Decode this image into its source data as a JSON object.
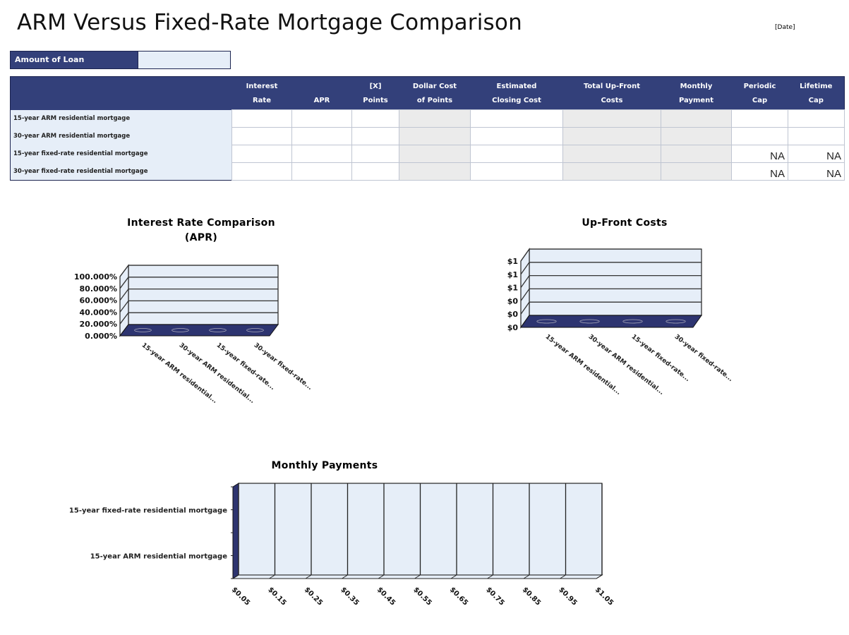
{
  "title": "ARM Versus Fixed-Rate Mortgage Comparison",
  "date": "[Date]",
  "loan": {
    "label": "Amount of Loan",
    "value": ""
  },
  "table": {
    "headers": [
      "",
      "Interest\nRate",
      "APR",
      "[X]\nPoints",
      "Dollar Cost\nof Points",
      "Estimated\nClosing Cost",
      "Total Up-Front\nCosts",
      "Monthly\nPayment",
      "Periodic\nCap",
      "Lifetime\nCap"
    ],
    "rows": [
      {
        "label": "15-year ARM residential mortgage",
        "periodic_cap": "",
        "lifetime_cap": ""
      },
      {
        "label": "30-year ARM residential mortgage",
        "periodic_cap": "",
        "lifetime_cap": ""
      },
      {
        "label": "15-year fixed-rate residential mortgage",
        "periodic_cap": "NA",
        "lifetime_cap": "NA"
      },
      {
        "label": "30-year fixed-rate residential mortgage",
        "periodic_cap": "NA",
        "lifetime_cap": "NA"
      }
    ]
  },
  "colors": {
    "header": "#33407a",
    "input": "#e6eef8",
    "calc": "#ebebeb",
    "floor": "#2d3470"
  },
  "chart_data": [
    {
      "type": "bar",
      "title": "Interest Rate Comparison\n(APR)",
      "categories": [
        "15-year ARM residential...",
        "30-year ARM residential...",
        "15-year fixed-rate...",
        "30-year fixed-rate..."
      ],
      "values": [
        0,
        0,
        0,
        0
      ],
      "ylim": [
        0,
        1
      ],
      "yticks": [
        "0.000%",
        "20.000%",
        "40.000%",
        "60.000%",
        "80.000%",
        "100.000%"
      ],
      "grid": true
    },
    {
      "type": "bar",
      "title": "Up-Front Costs",
      "categories": [
        "15-year ARM residential...",
        "30-year ARM residential...",
        "15-year fixed-rate...",
        "30-year fixed-rate..."
      ],
      "values": [
        0,
        0,
        0,
        0
      ],
      "ylim": [
        0,
        1
      ],
      "yticks": [
        "$0",
        "$0",
        "$0",
        "$1",
        "$1",
        "$1"
      ],
      "grid": true
    },
    {
      "type": "bar",
      "title": "Monthly Payments",
      "orientation": "horizontal",
      "categories": [
        "15-year ARM residential mortgage",
        "15-year fixed-rate residential mortgage"
      ],
      "values": [
        0,
        0
      ],
      "xlim": [
        0,
        1
      ],
      "xticks": [
        "$0.05",
        "$0.15",
        "$0.25",
        "$0.35",
        "$0.45",
        "$0.55",
        "$0.65",
        "$0.75",
        "$0.85",
        "$0.95",
        "$1.05"
      ],
      "grid": true
    }
  ]
}
